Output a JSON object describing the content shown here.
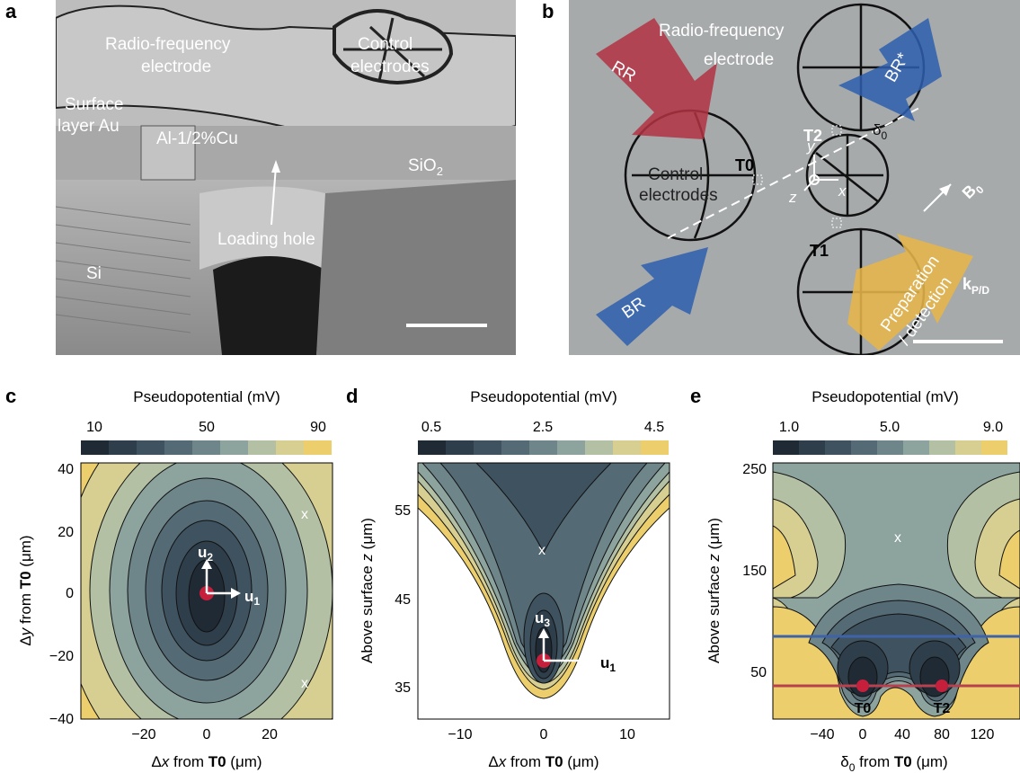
{
  "panels": {
    "a": {
      "letter": "a",
      "labels": {
        "rf": "Radio-frequency",
        "rf2": "electrode",
        "ctrl": "Control",
        "ctrl2": "electrodes",
        "surface": "Surface",
        "surface2": "layer Au",
        "alcu": "Al-1/2%Cu",
        "sio2_main": "SiO",
        "sio2_sub": "2",
        "hole": "Loading hole",
        "si": "Si"
      }
    },
    "b": {
      "letter": "b",
      "labels": {
        "rf": "Radio-frequency",
        "rf2": "electrode",
        "ctrl": "Control",
        "ctrl2": "electrodes",
        "rr": "RR",
        "brstar": "BR*",
        "br": "BR",
        "prep": "Preparation",
        "prep2": "/ detection",
        "t0": "T0",
        "t1": "T1",
        "t2": "T2",
        "delta": "δ",
        "delta_sub": "0",
        "x": "x",
        "y": "y",
        "z": "z",
        "b0": "B",
        "b0_sub": "0",
        "k": "k",
        "k_sub": "P/D"
      }
    },
    "c": {
      "letter": "c",
      "cbar_title": "Pseudopotential (mV)",
      "cbar_ticks": [
        "10",
        "50",
        "90"
      ],
      "y_ticks": [
        "40",
        "20",
        "0",
        "−20",
        "−40"
      ],
      "x_ticks": [
        "−20",
        "0",
        "20"
      ],
      "ylabel_pre": "Δ",
      "ylabel_var": "y",
      "ylabel_mid": " from ",
      "ylabel_bold": "T0",
      "ylabel_unit": " (μm)",
      "xlabel_pre": "Δ",
      "xlabel_var": "x",
      "xlabel_mid": " from ",
      "xlabel_bold": "T0",
      "xlabel_unit": " (μm)",
      "marker": "x",
      "u_a": "u",
      "u_a_sub": "2",
      "u_b": "u",
      "u_b_sub": "1"
    },
    "d": {
      "letter": "d",
      "cbar_title": "Pseudopotential (mV)",
      "cbar_ticks": [
        "0.5",
        "2.5",
        "4.5"
      ],
      "y_ticks": [
        "55",
        "45",
        "35"
      ],
      "x_ticks": [
        "−10",
        "0",
        "10"
      ],
      "ylabel_pre": "Above surface ",
      "ylabel_var": "z",
      "ylabel_unit": " (μm)",
      "xlabel_pre": "Δ",
      "xlabel_var": "x",
      "xlabel_mid": " from ",
      "xlabel_bold": "T0",
      "xlabel_unit": " (μm)",
      "marker": "x",
      "u_a": "u",
      "u_a_sub": "3",
      "u_b": "u",
      "u_b_sub": "1"
    },
    "e": {
      "letter": "e",
      "cbar_title": "Pseudopotential (mV)",
      "cbar_ticks": [
        "1.0",
        "5.0",
        "9.0"
      ],
      "y_ticks": [
        "250",
        "150",
        "50"
      ],
      "x_ticks": [
        "−40",
        "0",
        "40",
        "80",
        "120"
      ],
      "ylabel_pre": "Above surface ",
      "ylabel_var": "z",
      "ylabel_unit": " (μm)",
      "xlabel_pre": "δ",
      "xlabel_sub": "0",
      "xlabel_mid": " from ",
      "xlabel_bold": "T0",
      "xlabel_unit": " (μm)",
      "marker": "x",
      "site_a": "T0",
      "site_b": "T2"
    }
  },
  "colors": {
    "c1": "#1f2a35",
    "c2": "#2f3e4b",
    "c3": "#3f5260",
    "c4": "#546a74",
    "c5": "#6e858a",
    "c6": "#8da39e",
    "c7": "#b3c0a4",
    "c8": "#d7cf92",
    "c9": "#eccf6c",
    "blue_line": "#3f63a8",
    "red_line": "#b8404f",
    "dot": "#c51f3c",
    "arrow_red": "#b23242",
    "arrow_blue": "#2e5fae",
    "arrow_yellow": "#e6b54a"
  }
}
